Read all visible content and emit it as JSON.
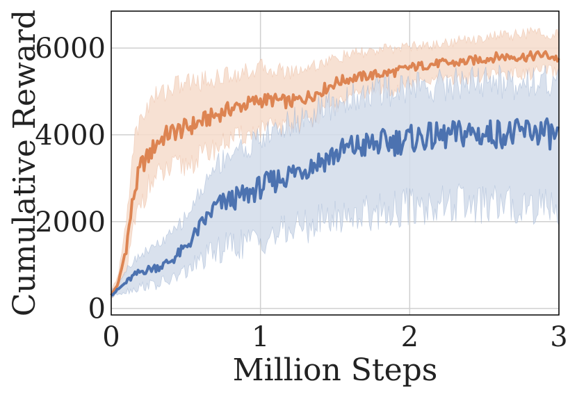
{
  "chart_data": {
    "type": "line",
    "title": "",
    "xlabel": "Million Steps",
    "ylabel": "Cumulative Reward",
    "xlim": [
      0,
      3
    ],
    "ylim": [
      -150,
      6850
    ],
    "xticks": [
      0,
      1,
      2,
      3
    ],
    "xtick_labels": [
      "0",
      "1",
      "2",
      "3"
    ],
    "yticks": [
      0,
      2000,
      4000,
      6000
    ],
    "ytick_labels": [
      "0",
      "2000",
      "4000",
      "6000"
    ],
    "grid": true,
    "legend": "none",
    "series": [
      {
        "color": "#dd8452",
        "band_color": "#f6dccb",
        "x": [
          0,
          0.05,
          0.1,
          0.15,
          0.2,
          0.25,
          0.3,
          0.35,
          0.4,
          0.5,
          0.6,
          0.7,
          0.8,
          0.9,
          1.0,
          1.1,
          1.2,
          1.3,
          1.4,
          1.5,
          1.6,
          1.7,
          1.8,
          1.9,
          2.0,
          2.1,
          2.2,
          2.3,
          2.4,
          2.5,
          2.6,
          2.7,
          2.8,
          2.9,
          3.0
        ],
        "y": [
          300,
          600,
          1400,
          2600,
          3300,
          3500,
          3800,
          3950,
          4050,
          4150,
          4300,
          4450,
          4600,
          4700,
          4800,
          4800,
          4750,
          4850,
          5000,
          5200,
          5300,
          5350,
          5400,
          5450,
          5550,
          5600,
          5650,
          5650,
          5700,
          5750,
          5800,
          5800,
          5800,
          5850,
          5750
        ],
        "lower": [
          250,
          400,
          800,
          1800,
          2500,
          2800,
          3000,
          3100,
          3200,
          3300,
          3500,
          3700,
          3900,
          4000,
          4100,
          4200,
          4150,
          4300,
          4450,
          4650,
          4850,
          4950,
          5000,
          5050,
          5150,
          5200,
          5250,
          5250,
          5300,
          5350,
          5400,
          5400,
          5400,
          5500,
          5400
        ],
        "upper": [
          400,
          800,
          2000,
          3800,
          4400,
          4700,
          4900,
          5000,
          5100,
          5200,
          5250,
          5300,
          5400,
          5450,
          5550,
          5500,
          5450,
          5550,
          5650,
          5750,
          5850,
          5900,
          5950,
          6000,
          6050,
          6050,
          6100,
          6150,
          6200,
          6250,
          6300,
          6300,
          6350,
          6350,
          6300
        ]
      },
      {
        "color": "#4c72b0",
        "band_color": "#d2dcea",
        "x": [
          0,
          0.05,
          0.1,
          0.15,
          0.2,
          0.25,
          0.3,
          0.35,
          0.4,
          0.5,
          0.6,
          0.7,
          0.8,
          0.9,
          1.0,
          1.1,
          1.2,
          1.3,
          1.4,
          1.5,
          1.6,
          1.7,
          1.8,
          1.9,
          2.0,
          2.1,
          2.2,
          2.3,
          2.4,
          2.5,
          2.6,
          2.7,
          2.8,
          2.9,
          3.0
        ],
        "y": [
          300,
          450,
          600,
          750,
          850,
          900,
          950,
          1000,
          1100,
          1400,
          1900,
          2350,
          2500,
          2600,
          2800,
          2950,
          3100,
          3250,
          3400,
          3550,
          3700,
          3750,
          3800,
          3850,
          3900,
          3950,
          3950,
          4000,
          4050,
          4000,
          4050,
          4000,
          4100,
          4050,
          3950
        ],
        "lower": [
          250,
          350,
          400,
          450,
          500,
          550,
          550,
          600,
          650,
          850,
          1100,
          1300,
          1450,
          1500,
          1600,
          1700,
          1800,
          1900,
          2000,
          2100,
          2150,
          2200,
          2250,
          2300,
          2350,
          2350,
          2400,
          2400,
          2400,
          2350,
          2400,
          2350,
          2400,
          2400,
          2350
        ],
        "upper": [
          400,
          600,
          900,
          1100,
          1250,
          1350,
          1450,
          1550,
          1700,
          2100,
          2700,
          3300,
          3600,
          3700,
          3900,
          4100,
          4250,
          4400,
          4550,
          4700,
          4850,
          4950,
          5000,
          5050,
          5100,
          5150,
          5150,
          5200,
          5250,
          5200,
          5250,
          5200,
          5300,
          5250,
          5200
        ]
      }
    ]
  }
}
